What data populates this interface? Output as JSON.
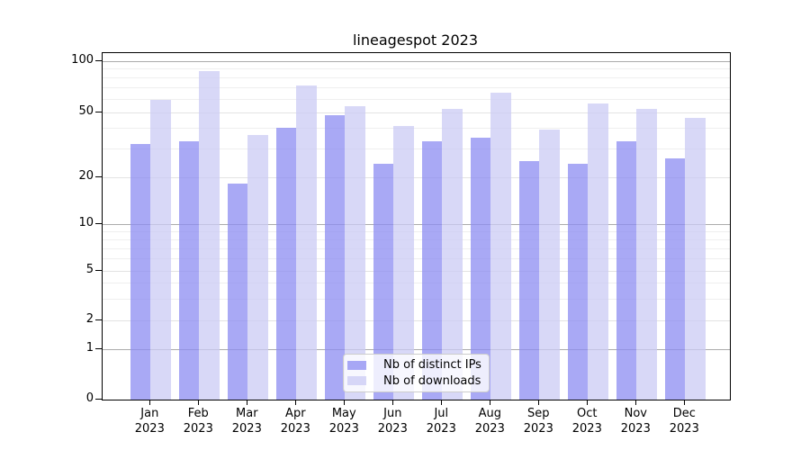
{
  "chart_data": {
    "type": "bar",
    "title": "lineagespot 2023",
    "categories": [
      "Jan",
      "Feb",
      "Mar",
      "Apr",
      "May",
      "Jun",
      "Jul",
      "Aug",
      "Sep",
      "Oct",
      "Nov",
      "Dec"
    ],
    "year": "2023",
    "series": [
      {
        "name": "Nb of distinct IPs",
        "color": "#8c8cf2",
        "fill_alpha": 0.75,
        "values": [
          32,
          33,
          18,
          40,
          48,
          24,
          33,
          35,
          25,
          24,
          33,
          26
        ]
      },
      {
        "name": "Nb of downloads",
        "color": "#cbcbf4",
        "fill_alpha": 0.75,
        "values": [
          59,
          87,
          36,
          72,
          54,
          41,
          52,
          65,
          39,
          56,
          52,
          46
        ]
      }
    ],
    "xlabel": "",
    "ylabel": "",
    "ylim": [
      0,
      100
    ],
    "y_scale": "log-like with 0 baseline",
    "y_ticks": [
      100,
      50,
      20,
      10,
      5,
      2,
      1,
      0
    ],
    "y_emphasized_gridlines": [
      100,
      10,
      1
    ],
    "y_minor_gridlines": [
      90,
      80,
      70,
      60,
      40,
      30,
      9,
      8,
      7,
      6,
      4,
      3
    ],
    "grid": "horizontal",
    "legend_position": "lower center inside plot"
  },
  "colors": {
    "background": "#ffffff",
    "axis": "#000000",
    "text": "#000000",
    "grid_major_emphasized": "#ababab",
    "grid_major": "#e3e3e3",
    "grid_minor": "#efefef",
    "legend_border": "#cccccc"
  }
}
